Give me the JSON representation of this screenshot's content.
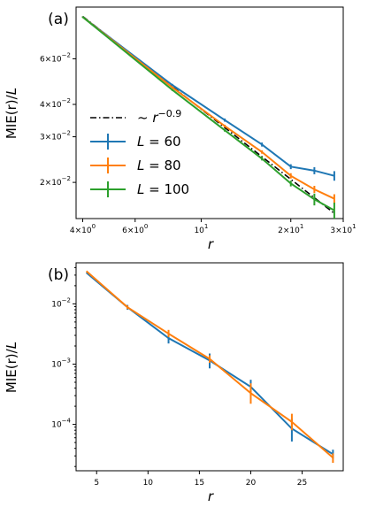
{
  "colors": {
    "L60": "#1f77b4",
    "L80": "#ff7f0e",
    "L100": "#2ca02c",
    "ref": "#000000"
  },
  "chart_data": [
    {
      "type": "line",
      "panel_label": "(a)",
      "xscale": "log",
      "yscale": "log",
      "xlabel": "r",
      "ylabel": "MIE(r)/L",
      "xlim": [
        3.8,
        30
      ],
      "ylim": [
        0.0145,
        0.095
      ],
      "xticks": [
        {
          "v": 4,
          "base": "4",
          "exp": "0"
        },
        {
          "v": 6,
          "base": "6",
          "exp": "0"
        },
        {
          "v": 10,
          "base": "10",
          "exp": "1"
        },
        {
          "v": 20,
          "base": "2",
          "exp": "1"
        },
        {
          "v": 30,
          "base": "3",
          "exp": "1"
        }
      ],
      "yticks": [
        {
          "v": 0.02,
          "base": "2",
          "exp": "-2"
        },
        {
          "v": 0.03,
          "base": "3",
          "exp": "-2"
        },
        {
          "v": 0.04,
          "base": "4",
          "exp": "-2"
        },
        {
          "v": 0.06,
          "base": "6",
          "exp": "-2"
        }
      ],
      "legend": {
        "position": "lower-left",
        "entries": [
          {
            "label": "~ r^-0.9",
            "key": "ref"
          },
          {
            "label": "L = 60",
            "key": "L60"
          },
          {
            "label": "L = 80",
            "key": "L80"
          },
          {
            "label": "L = 100",
            "key": "L100"
          }
        ]
      },
      "reference": {
        "label": "~ r^-0.9",
        "exponent": -0.9,
        "x": [
          4,
          28
        ],
        "y0": 0.0875
      },
      "series": [
        {
          "name": "L = 60",
          "key": "L60",
          "x": [
            4,
            8,
            12,
            16,
            20,
            24,
            28
          ],
          "y": [
            0.087,
            0.0475,
            0.0348,
            0.028,
            0.023,
            0.0222,
            0.0212
          ],
          "err": [
            0.0005,
            0.0005,
            0.0005,
            0.0005,
            0.0005,
            0.0007,
            0.0009
          ]
        },
        {
          "name": "L = 80",
          "key": "L80",
          "x": [
            4,
            8,
            12,
            16,
            20,
            24,
            28
          ],
          "y": [
            0.087,
            0.0465,
            0.033,
            0.0262,
            0.0212,
            0.0188,
            0.0173
          ],
          "err": [
            0.0004,
            0.0004,
            0.0004,
            0.0004,
            0.0005,
            0.0006,
            0.0007
          ]
        },
        {
          "name": "L = 100",
          "key": "L100",
          "x": [
            4,
            8,
            12,
            16,
            20,
            24,
            28
          ],
          "y": [
            0.087,
            0.0455,
            0.0318,
            0.0247,
            0.0198,
            0.0172,
            0.0156
          ],
          "err": [
            0.0004,
            0.0004,
            0.0004,
            0.0004,
            0.0005,
            0.0009,
            0.0011
          ]
        }
      ]
    },
    {
      "type": "line",
      "panel_label": "(b)",
      "xscale": "linear",
      "yscale": "log",
      "xlabel": "r",
      "ylabel": "MIE(r)/L",
      "xlim": [
        3,
        29
      ],
      "ylim": [
        1.7e-05,
        0.048
      ],
      "xticks": [
        {
          "v": 5,
          "text": "5"
        },
        {
          "v": 10,
          "text": "10"
        },
        {
          "v": 15,
          "text": "15"
        },
        {
          "v": 20,
          "text": "20"
        },
        {
          "v": 25,
          "text": "25"
        }
      ],
      "yticks": [
        {
          "v": 0.01,
          "base": "10",
          "exp": "-2"
        },
        {
          "v": 0.001,
          "base": "10",
          "exp": "-3"
        },
        {
          "v": 0.0001,
          "base": "10",
          "exp": "-4"
        }
      ],
      "series": [
        {
          "name": "L = 60",
          "key": "L60",
          "x": [
            4,
            8,
            12,
            16,
            20,
            24,
            28
          ],
          "y": [
            0.033,
            0.0088,
            0.0027,
            0.00115,
            0.00042,
            8.5e-05,
            3.2e-05
          ],
          "lo": [
            0.033,
            0.008,
            0.0022,
            0.00085,
            0.0003,
            5.2e-05,
            2.7e-05
          ],
          "hi": [
            0.033,
            0.0096,
            0.0033,
            0.0015,
            0.00055,
            0.000125,
            3.8e-05
          ]
        },
        {
          "name": "L = 80",
          "key": "L80",
          "x": [
            4,
            8,
            12,
            16,
            20,
            24,
            28
          ],
          "y": [
            0.035,
            0.0088,
            0.0032,
            0.00122,
            0.00033,
            0.00011,
            2.8e-05
          ],
          "lo": [
            0.035,
            0.0082,
            0.0028,
            0.00105,
            0.00022,
            8e-05,
            2.3e-05
          ],
          "hi": [
            0.035,
            0.0094,
            0.0037,
            0.0014,
            0.00048,
            0.00015,
            3.3e-05
          ]
        }
      ]
    }
  ]
}
